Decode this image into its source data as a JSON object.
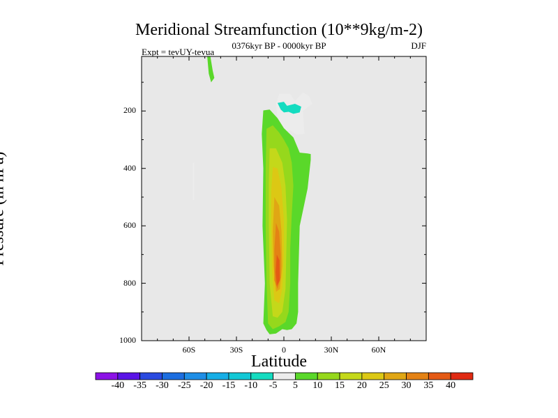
{
  "chart_data": {
    "type": "contour",
    "title": "Meridional Streamfunction (10**9kg/m-2)",
    "left_label": "Expt = tevUY-tevua",
    "center_label": "0376kyr BP - 0000kyr BP",
    "right_label": "DJF",
    "xlabel": "Latitude",
    "ylabel": "Pressure (in hPa)",
    "xlim": [
      -90,
      90
    ],
    "ylim": [
      1000,
      10
    ],
    "y_reversed": true,
    "x_ticks": [
      {
        "value": -60,
        "label": "60S"
      },
      {
        "value": -30,
        "label": "30S"
      },
      {
        "value": 0,
        "label": "0"
      },
      {
        "value": 30,
        "label": "30N"
      },
      {
        "value": 60,
        "label": "60N"
      }
    ],
    "y_ticks": [
      {
        "value": 200,
        "label": "200"
      },
      {
        "value": 400,
        "label": "400"
      },
      {
        "value": 600,
        "label": "600"
      },
      {
        "value": 800,
        "label": "800"
      },
      {
        "value": 1000,
        "label": "1000"
      }
    ],
    "colorbar": {
      "labels": [
        "-40",
        "-35",
        "-30",
        "-25",
        "-20",
        "-15",
        "-10",
        "-5",
        "5",
        "10",
        "15",
        "20",
        "25",
        "30",
        "35",
        "40"
      ],
      "colors": [
        "#8c12e6",
        "#5a14e6",
        "#2a4ae0",
        "#1c6ee0",
        "#1e8ee6",
        "#16aee6",
        "#12c8d6",
        "#14dcc0",
        "#ececec",
        "#5ad82a",
        "#96d81c",
        "#c4d81a",
        "#dcc814",
        "#e0a614",
        "#e48214",
        "#e45a14",
        "#e02a12"
      ]
    },
    "regions": [
      {
        "name": "region-45s-upper-positive",
        "level": 5,
        "points": [
          [
            -48.5,
            10
          ],
          [
            -46.5,
            10
          ],
          [
            -45,
            60
          ],
          [
            -44,
            85
          ],
          [
            -46,
            100
          ],
          [
            -47.5,
            70
          ]
        ]
      },
      {
        "name": "region-57s-midlevel-negative",
        "level": -5,
        "points": [
          [
            -57.5,
            380
          ],
          [
            -56.8,
            380
          ],
          [
            -56.8,
            510
          ],
          [
            -57.5,
            510
          ]
        ]
      },
      {
        "name": "region-upper-negative-outer",
        "level": -5,
        "points": [
          [
            -3,
            140
          ],
          [
            4,
            140
          ],
          [
            7,
            165
          ],
          [
            12,
            135
          ],
          [
            16,
            148
          ],
          [
            18,
            175
          ],
          [
            12,
            200
          ],
          [
            13,
            280
          ],
          [
            8,
            282
          ],
          [
            4,
            268
          ],
          [
            -1,
            270
          ],
          [
            -4,
            225
          ],
          [
            -5,
            175
          ]
        ]
      },
      {
        "name": "region-upper-negative-inner",
        "level": -10,
        "points": [
          [
            -4,
            172
          ],
          [
            0,
            168
          ],
          [
            2,
            182
          ],
          [
            7,
            175
          ],
          [
            11,
            185
          ],
          [
            10,
            205
          ],
          [
            6,
            210
          ],
          [
            3,
            203
          ],
          [
            0,
            205
          ],
          [
            -2,
            195
          ]
        ]
      },
      {
        "name": "region-lower-positive-5",
        "level": 5,
        "points": [
          [
            -13,
            198
          ],
          [
            -9,
            195
          ],
          [
            -4,
            225
          ],
          [
            0,
            260
          ],
          [
            6,
            292
          ],
          [
            10,
            345
          ],
          [
            15,
            348
          ],
          [
            17,
            350
          ],
          [
            17,
            370
          ],
          [
            15,
            470
          ],
          [
            10,
            600
          ],
          [
            9,
            800
          ],
          [
            9,
            900
          ],
          [
            8,
            940
          ],
          [
            5,
            960
          ],
          [
            2,
            963
          ],
          [
            -1,
            960
          ],
          [
            -5,
            975
          ],
          [
            -9,
            978
          ],
          [
            -11,
            963
          ],
          [
            -13,
            940
          ],
          [
            -12,
            800
          ],
          [
            -13.5,
            600
          ],
          [
            -13,
            400
          ],
          [
            -14,
            280
          ]
        ]
      },
      {
        "name": "region-lower-positive-10",
        "level": 10,
        "points": [
          [
            -11,
            262
          ],
          [
            -7,
            250
          ],
          [
            -3,
            275
          ],
          [
            0,
            300
          ],
          [
            3,
            330
          ],
          [
            5,
            380
          ],
          [
            6,
            460
          ],
          [
            5,
            560
          ],
          [
            4,
            680
          ],
          [
            4,
            800
          ],
          [
            3,
            900
          ],
          [
            1,
            935
          ],
          [
            -3,
            950
          ],
          [
            -7,
            960
          ],
          [
            -10,
            940
          ],
          [
            -11,
            800
          ],
          [
            -11.5,
            600
          ],
          [
            -11.5,
            400
          ]
        ]
      },
      {
        "name": "region-lower-positive-15",
        "level": 15,
        "points": [
          [
            -9,
            330
          ],
          [
            -5,
            330
          ],
          [
            -1,
            380
          ],
          [
            1,
            460
          ],
          [
            2,
            580
          ],
          [
            1.5,
            700
          ],
          [
            1,
            820
          ],
          [
            -1,
            900
          ],
          [
            -4,
            920
          ],
          [
            -7,
            915
          ],
          [
            -9,
            800
          ],
          [
            -9.5,
            600
          ],
          [
            -9.5,
            450
          ]
        ]
      },
      {
        "name": "region-lower-positive-20",
        "level": 20,
        "points": [
          [
            -7,
            395
          ],
          [
            -4,
            400
          ],
          [
            -1.5,
            470
          ],
          [
            0,
            580
          ],
          [
            0,
            700
          ],
          [
            -1,
            820
          ],
          [
            -3,
            870
          ],
          [
            -6,
            860
          ],
          [
            -7.5,
            760
          ],
          [
            -8,
            600
          ],
          [
            -8,
            480
          ]
        ]
      },
      {
        "name": "region-lower-positive-25",
        "level": 25,
        "points": [
          [
            -6,
            500
          ],
          [
            -3,
            530
          ],
          [
            -1.5,
            620
          ],
          [
            -1,
            740
          ],
          [
            -2.5,
            820
          ],
          [
            -5,
            830
          ],
          [
            -6.5,
            740
          ],
          [
            -7,
            620
          ]
        ]
      },
      {
        "name": "region-lower-positive-30",
        "level": 30,
        "points": [
          [
            -5,
            590
          ],
          [
            -3,
            620
          ],
          [
            -2,
            700
          ],
          [
            -2,
            780
          ],
          [
            -4,
            820
          ],
          [
            -6,
            790
          ],
          [
            -6,
            680
          ]
        ]
      },
      {
        "name": "region-lower-positive-35",
        "level": 35,
        "points": [
          [
            -4.5,
            700
          ],
          [
            -2.8,
            720
          ],
          [
            -2.6,
            790
          ],
          [
            -4.5,
            810
          ],
          [
            -5.2,
            760
          ]
        ]
      }
    ]
  }
}
